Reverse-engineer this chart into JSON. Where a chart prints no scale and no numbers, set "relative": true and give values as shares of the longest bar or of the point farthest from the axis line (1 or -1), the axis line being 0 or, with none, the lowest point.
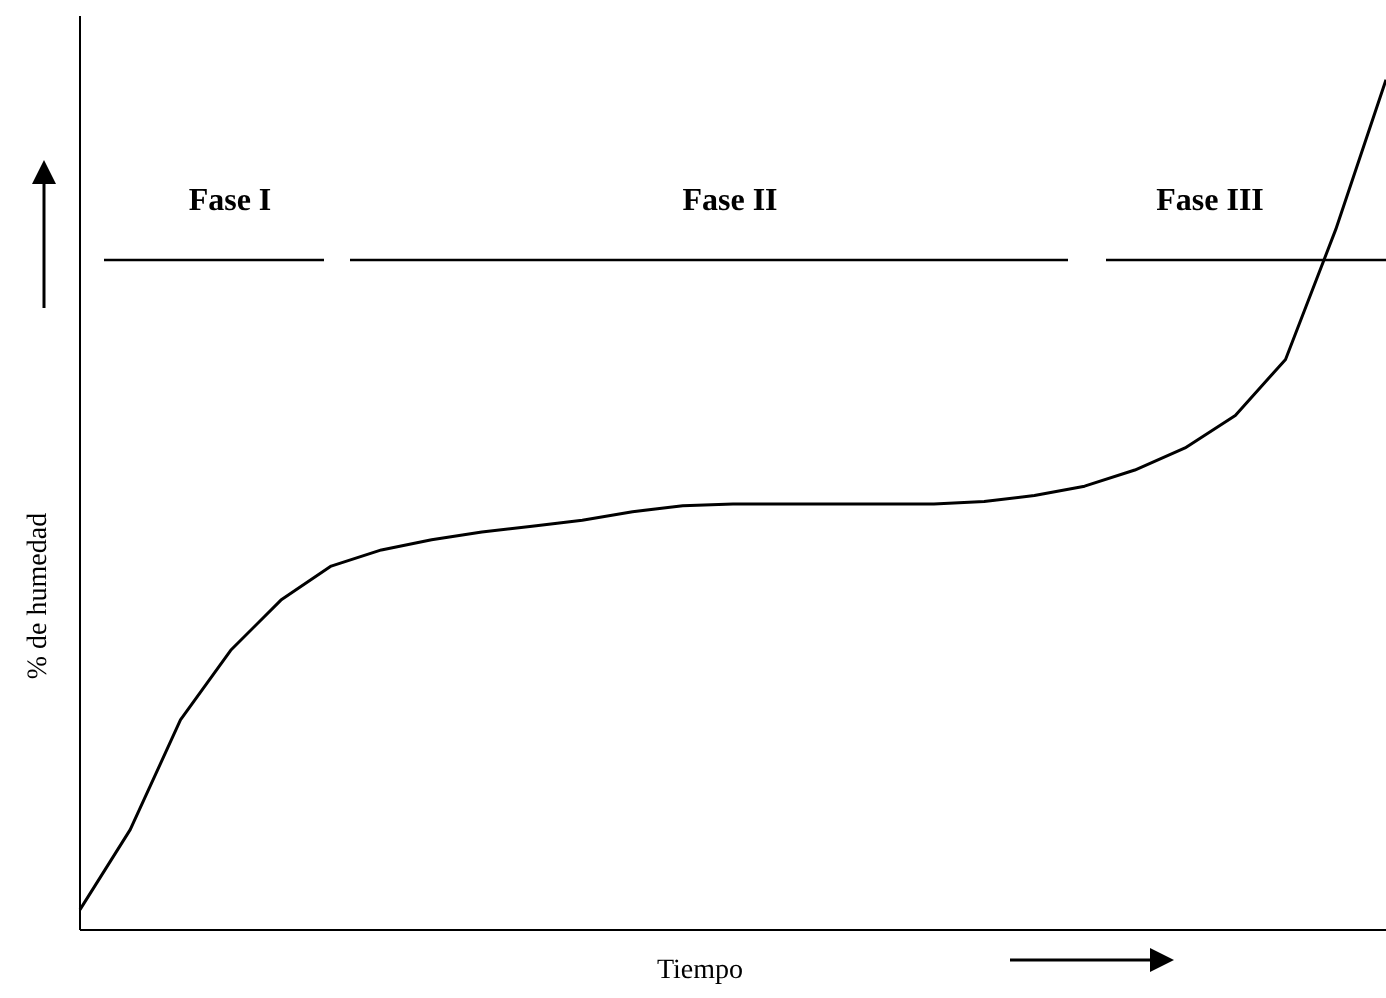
{
  "chart_data": {
    "type": "line",
    "relative": true,
    "xlabel": "Tiempo",
    "ylabel": "% de humedad",
    "categories": [
      null,
      null,
      null,
      null,
      null,
      null,
      null,
      null,
      null,
      null,
      null,
      null,
      null,
      null,
      null,
      null,
      null,
      null,
      null,
      null,
      null,
      null,
      null,
      null,
      null,
      null,
      null
    ],
    "series": [
      {
        "color": "#000000",
        "values": [
          0.024,
          0.118,
          0.247,
          0.329,
          0.388,
          0.428,
          0.447,
          0.459,
          0.468,
          0.475,
          0.482,
          0.492,
          0.499,
          0.501,
          0.501,
          0.501,
          0.501,
          0.501,
          0.504,
          0.511,
          0.522,
          0.541,
          0.567,
          0.605,
          0.671,
          0.824,
          1
        ]
      }
    ],
    "ref_lines": [
      {
        "axis": "y",
        "value": 0.788,
        "color": "#000000"
      }
    ],
    "annotations": [
      "Fase I",
      "Fase II",
      "Fase III"
    ],
    "marker": "none",
    "line_style": "solid"
  }
}
